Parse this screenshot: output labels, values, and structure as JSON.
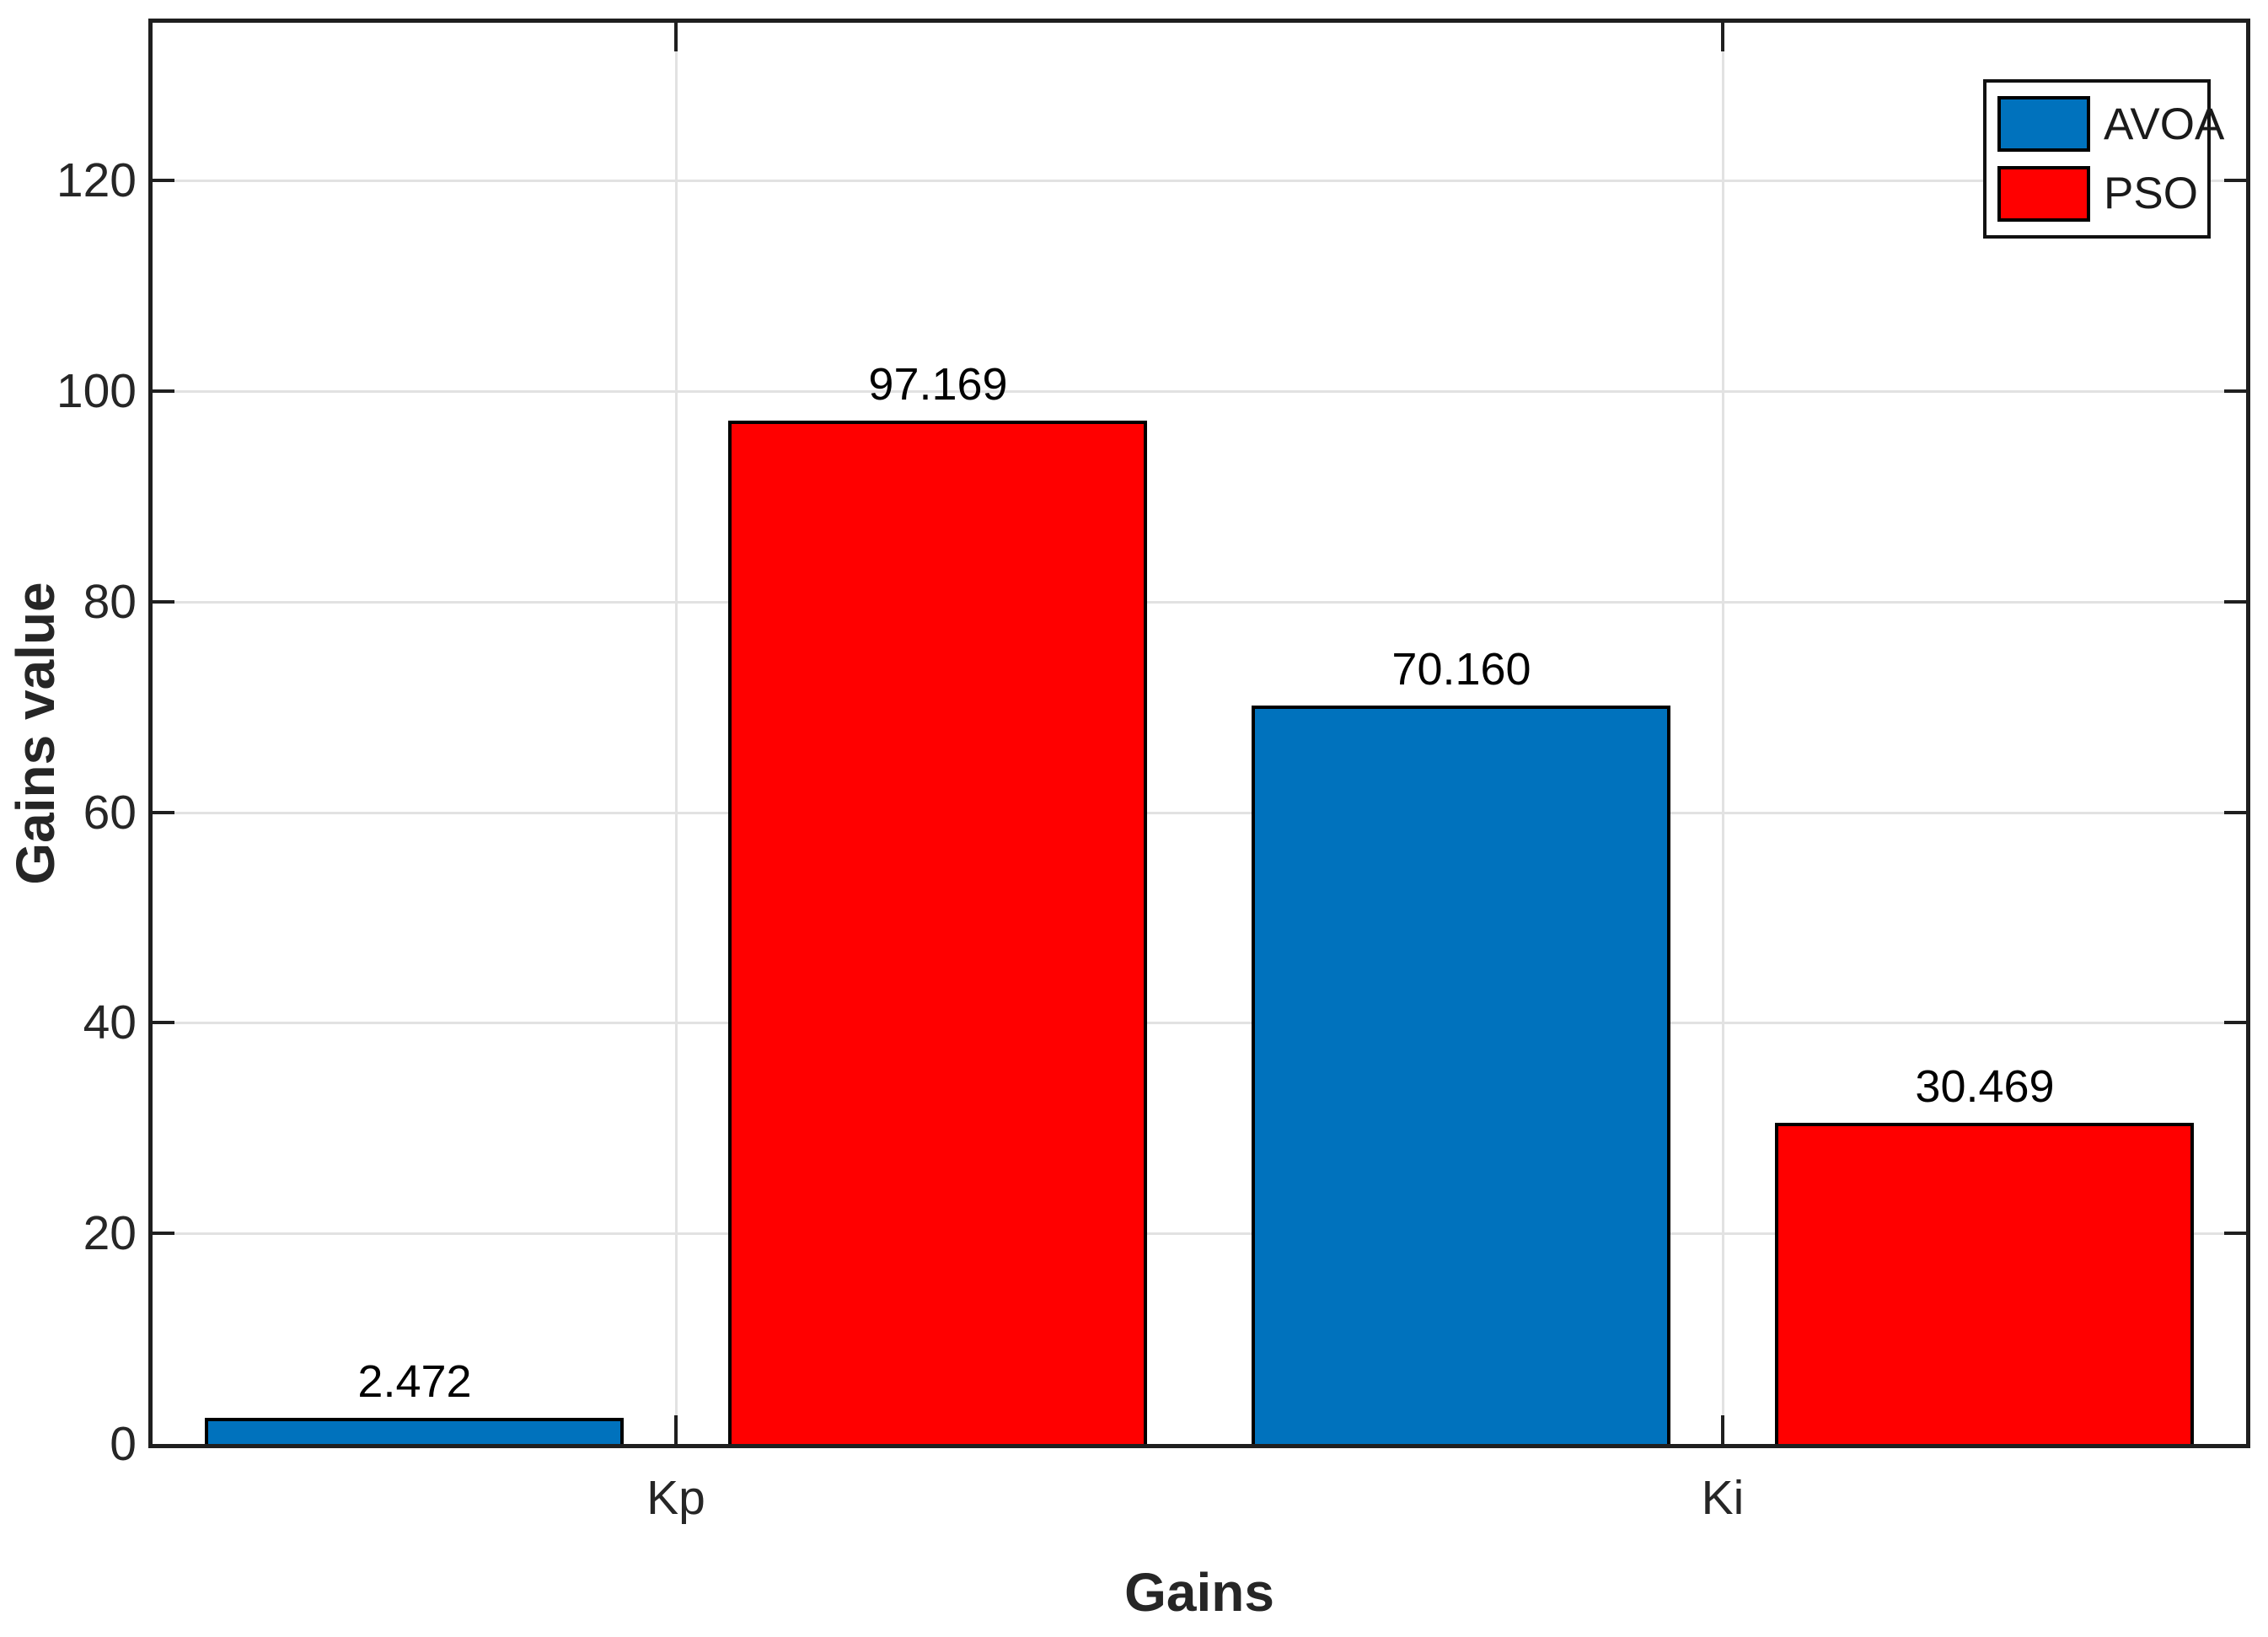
{
  "figure": {
    "background": "#ffffff"
  },
  "chart_data": {
    "type": "bar",
    "categories": [
      "Kp",
      "Ki"
    ],
    "series": [
      {
        "name": "AVOA",
        "color": "#0072BD",
        "values": [
          2.472,
          70.16
        ],
        "value_labels": [
          "2.472",
          "70.160"
        ]
      },
      {
        "name": "PSO",
        "color": "#FF0000",
        "values": [
          97.169,
          30.469
        ],
        "value_labels": [
          "97.169",
          "30.469"
        ]
      }
    ],
    "title": "",
    "xlabel": "Gains",
    "ylabel": "Gains value",
    "ylim": [
      0,
      135
    ],
    "yticks": [
      0,
      20,
      40,
      60,
      80,
      100,
      120
    ],
    "grid": true,
    "legend": {
      "position": "northeast",
      "entries": [
        "AVOA",
        "PSO"
      ]
    },
    "bar_edge_color": "#000000",
    "grid_color": "#e2e2e2",
    "axis_color": "#1f1f1f",
    "tick_label_color": "#262626"
  }
}
